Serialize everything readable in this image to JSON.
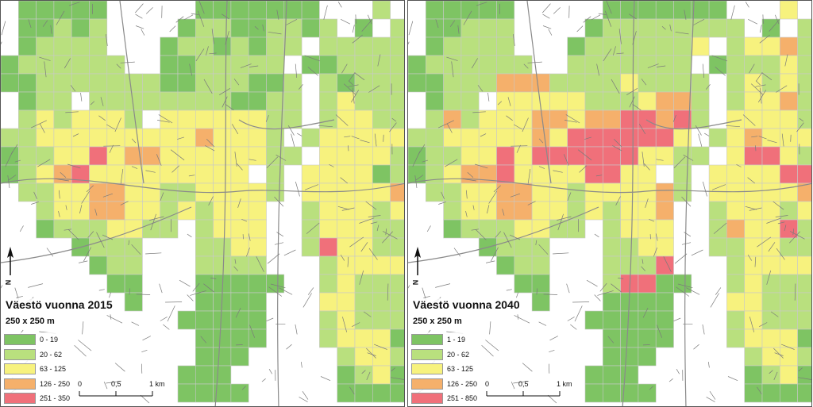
{
  "panels": [
    {
      "title": "Väestö vuonna 2015",
      "subtitle": "250 x 250 m",
      "legend": [
        {
          "label": "0 - 19",
          "color": "#7ec463"
        },
        {
          "label": "20 - 62",
          "color": "#b9e07e"
        },
        {
          "label": "63 - 125",
          "color": "#f7f27e"
        },
        {
          "label": "126 - 250",
          "color": "#f5b06b"
        },
        {
          "label": "251 - 350",
          "color": "#f0707a"
        }
      ],
      "scale": {
        "labels": [
          "0",
          "0,5",
          "1 km"
        ]
      },
      "north_label": "N"
    },
    {
      "title": "Väestö vuonna 2040",
      "subtitle": "250 x 250 m",
      "legend": [
        {
          "label": "1 - 19",
          "color": "#7ec463"
        },
        {
          "label": "20 - 62",
          "color": "#b9e07e"
        },
        {
          "label": "63 - 125",
          "color": "#f7f27e"
        },
        {
          "label": "126 - 250",
          "color": "#f5b06b"
        },
        {
          "label": "251 - 850",
          "color": "#f0707a"
        }
      ],
      "scale": {
        "labels": [
          "0",
          "0,5",
          "1 km"
        ]
      },
      "north_label": "N"
    }
  ]
}
